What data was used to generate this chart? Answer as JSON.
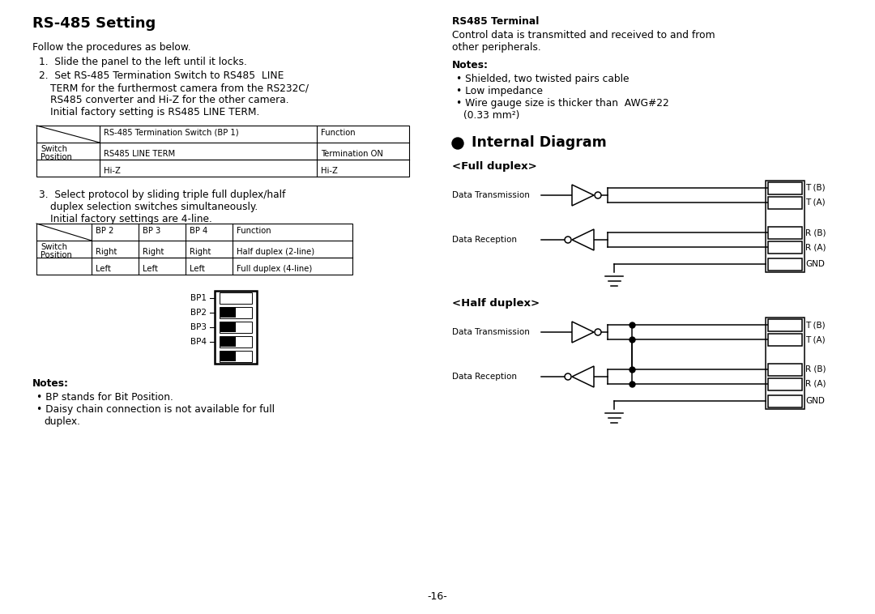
{
  "bg_color": "#ffffff",
  "text_color": "#000000",
  "page_number": "-16-",
  "left_col": {
    "title": "RS-485 Setting",
    "para1": "Follow the procedures as below.",
    "item1": "1.  Slide the panel to the left until it locks.",
    "item2_line1": "2.  Set RS-485 Termination Switch to RS485  LINE",
    "item2_line2": "     TERM for the furthermost camera from the RS232C/",
    "item2_line3": "     RS485 converter and Hi-Z for the other camera.",
    "item2_line4": "     Initial factory setting is RS485 LINE TERM.",
    "item3_line1": "3.  Select protocol by sliding triple full duplex/half",
    "item3_line2": "     duplex selection switches simultaneously.",
    "item3_line3": "     Initial factory settings are 4-line.",
    "notes_title": "Notes:",
    "notes_items": [
      "BP stands for Bit Position.",
      "Daisy chain connection is not available for full\n     duplex."
    ],
    "bp_labels": [
      "BP1",
      "BP2",
      "BP3",
      "BP4"
    ]
  },
  "right_col": {
    "rs485_title": "RS485 Terminal",
    "rs485_body1": "Control data is transmitted and received to and from",
    "rs485_body2": "other peripherals.",
    "notes_title": "Notes:",
    "notes_items": [
      "Shielded, two twisted pairs cable",
      "Low impedance",
      "Wire gauge size is thicker than  AWG#22\n     (0.33 mm²)"
    ],
    "internal_title": " Internal Diagram",
    "full_duplex_title": "<Full duplex>",
    "half_duplex_title": "<Half duplex>",
    "terminal_labels_full": [
      "T (B)",
      "T (A)",
      "R (B)",
      "R (A)",
      "GND"
    ],
    "terminal_labels_half": [
      "T (B)",
      "T (A)",
      "R (B)",
      "R (A)",
      "GND"
    ]
  }
}
